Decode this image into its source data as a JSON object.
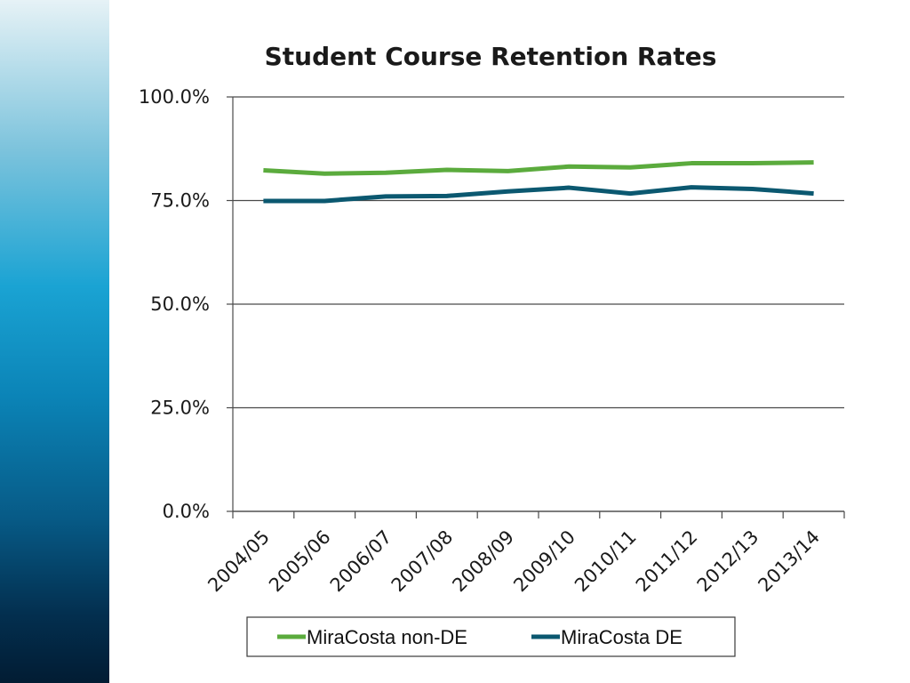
{
  "chart_data": {
    "type": "line",
    "title": "Student Course Retention Rates",
    "xlabel": "",
    "ylabel": "",
    "categories": [
      "2004/05",
      "2005/06",
      "2006/07",
      "2007/08",
      "2008/09",
      "2009/10",
      "2010/11",
      "2011/12",
      "2012/13",
      "2013/14"
    ],
    "series": [
      {
        "name": "MiraCosta non-DE",
        "color": "#5bab3d",
        "values": [
          82.3,
          81.5,
          81.7,
          82.4,
          82.1,
          83.2,
          83.0,
          84.0,
          84.0,
          84.2
        ]
      },
      {
        "name": "MiraCosta DE",
        "color": "#0b5870",
        "values": [
          74.9,
          74.9,
          76.0,
          76.1,
          77.2,
          78.1,
          76.7,
          78.2,
          77.8,
          76.7
        ]
      }
    ],
    "ylim": [
      0,
      100
    ],
    "yticks": [
      0,
      25,
      50,
      75,
      100
    ],
    "ytick_labels": [
      "0.0%",
      "25.0%",
      "50.0%",
      "75.0%",
      "100.0%"
    ],
    "grid": true,
    "legend_position": "bottom"
  }
}
